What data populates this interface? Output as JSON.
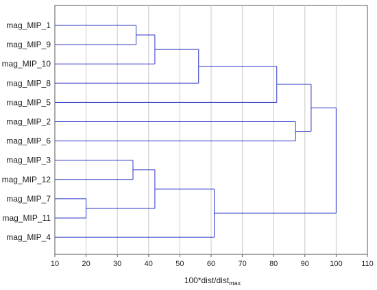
{
  "chart_data": {
    "type": "dendrogram",
    "title": "",
    "xlabel": "100*dist/dist",
    "xlabel_subscript": "max",
    "xlim": [
      10,
      110
    ],
    "xticks": [
      10,
      20,
      30,
      40,
      50,
      60,
      70,
      80,
      90,
      100,
      110
    ],
    "grid": "vertical",
    "line_color": "#2a35c8",
    "leaves": [
      "mag_MIP_1",
      "mag_MIP_9",
      "mag_MIP_10",
      "mag_MIP_8",
      "mag_MIP_5",
      "mag_MIP_2",
      "mag_MIP_6",
      "mag_MIP_3",
      "mag_MIP_12",
      "mag_MIP_7",
      "mag_MIP_11",
      "mag_MIP_4"
    ],
    "merges": [
      {
        "left": "mag_MIP_1",
        "right": "mag_MIP_9",
        "height": 36
      },
      {
        "left": "c1",
        "right": "mag_MIP_10",
        "height": 42
      },
      {
        "left": "c2",
        "right": "mag_MIP_8",
        "height": 56
      },
      {
        "left": "c3",
        "right": "mag_MIP_5",
        "height": 81
      },
      {
        "left": "mag_MIP_2",
        "right": "mag_MIP_6",
        "height": 87
      },
      {
        "left": "c4",
        "right": "c5",
        "height": 92
      },
      {
        "left": "mag_MIP_3",
        "right": "mag_MIP_12",
        "height": 35
      },
      {
        "left": "mag_MIP_7",
        "right": "mag_MIP_11",
        "height": 20
      },
      {
        "left": "c7",
        "right": "c8",
        "height": 42
      },
      {
        "left": "c9",
        "right": "mag_MIP_4",
        "height": 61
      },
      {
        "left": "c6",
        "right": "c10",
        "height": 100
      }
    ]
  }
}
